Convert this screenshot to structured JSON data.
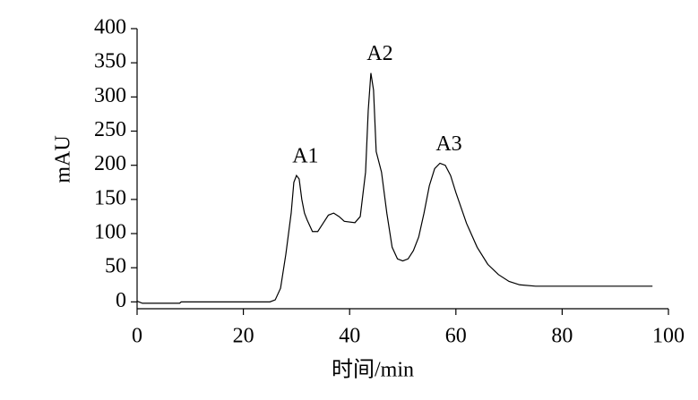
{
  "chart_data": {
    "type": "line",
    "x_label": "时间/min",
    "y_label": "mAU",
    "xlim": [
      0,
      100
    ],
    "xticks": [
      0,
      20,
      40,
      60,
      80,
      100
    ],
    "ylim": [
      -10,
      400
    ],
    "yticks": [
      0,
      50,
      100,
      150,
      200,
      250,
      300,
      350,
      400
    ],
    "series": [
      {
        "color": "#000000",
        "x": [
          0,
          1,
          8,
          8.3,
          25,
          26,
          27,
          28,
          29,
          29.5,
          30,
          30.5,
          31,
          31.5,
          32,
          33,
          34,
          35,
          36,
          37,
          38,
          39,
          41,
          42,
          43,
          43.5,
          44,
          44.5,
          45,
          46,
          47,
          48,
          49,
          50,
          51,
          52,
          53,
          54,
          55,
          56,
          57,
          58,
          59,
          60,
          62,
          64,
          66,
          68,
          70,
          72,
          75,
          80,
          97
        ],
        "values": [
          1,
          -2,
          -2,
          0,
          0,
          3,
          20,
          70,
          130,
          175,
          185,
          180,
          150,
          130,
          120,
          103,
          103,
          115,
          127,
          130,
          125,
          118,
          116,
          125,
          190,
          280,
          335,
          310,
          220,
          190,
          130,
          80,
          63,
          60,
          63,
          75,
          95,
          130,
          170,
          195,
          203,
          200,
          185,
          160,
          115,
          80,
          55,
          40,
          30,
          25,
          23,
          23,
          23
        ]
      }
    ],
    "annotations": [
      {
        "text": "A1",
        "x": 30,
        "y": 185
      },
      {
        "text": "A2",
        "x": 44,
        "y": 335
      },
      {
        "text": "A3",
        "x": 57,
        "y": 203
      }
    ]
  }
}
